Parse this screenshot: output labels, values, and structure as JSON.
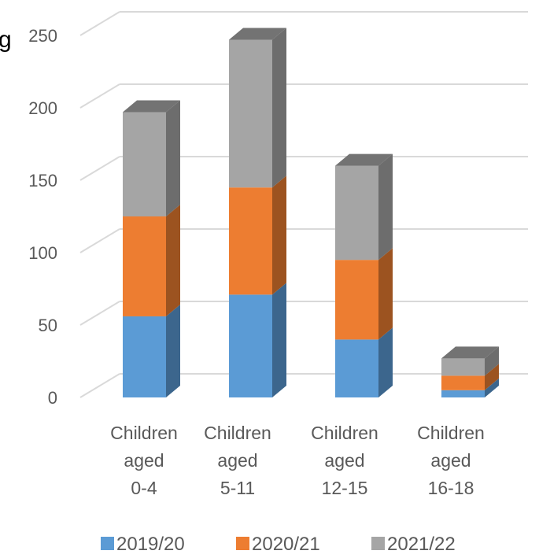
{
  "chart_data": {
    "type": "bar",
    "stacked": true,
    "three_d": true,
    "title_fragment": "g",
    "categories": [
      [
        "Children",
        "aged",
        "0-4"
      ],
      [
        "Children",
        "aged",
        "5-11"
      ],
      [
        "Children",
        "aged",
        "12-15"
      ],
      [
        "Children",
        "aged",
        "16-18"
      ]
    ],
    "series": [
      {
        "name": "2019/20",
        "color": "#5B9BD5",
        "values": [
          56,
          71,
          40,
          5
        ]
      },
      {
        "name": "2020/21",
        "color": "#ED7D31",
        "values": [
          69,
          74,
          55,
          10
        ]
      },
      {
        "name": "2021/22",
        "color": "#A5A5A5",
        "values": [
          72,
          102,
          65,
          12
        ]
      }
    ],
    "yticks": [
      0,
      50,
      100,
      150,
      200,
      250
    ],
    "ylim": [
      0,
      250
    ],
    "grid": true,
    "legend_position": "bottom"
  }
}
